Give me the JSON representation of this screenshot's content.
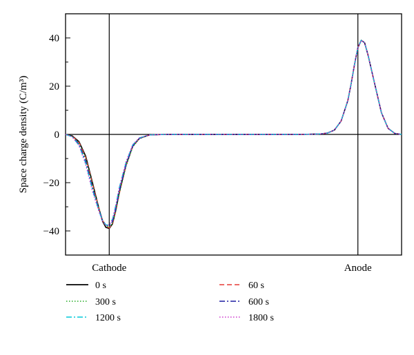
{
  "chart_data": {
    "type": "line",
    "ylabel": "Space charge density (C/m³)",
    "ylim": [
      -50,
      50
    ],
    "yticks": [
      -40,
      -20,
      0,
      20,
      40
    ],
    "xlim": [
      0,
      100
    ],
    "electrodes": [
      {
        "label": "Cathode",
        "x": 13
      },
      {
        "label": "Anode",
        "x": 87
      }
    ],
    "grid": false,
    "legend_position": "bottom",
    "x": [
      0,
      2,
      4,
      6,
      8,
      10,
      11,
      12,
      13,
      14,
      15,
      16,
      18,
      20,
      22,
      25,
      30,
      40,
      50,
      60,
      70,
      76,
      78,
      80,
      82,
      84,
      85,
      86,
      87,
      88,
      89,
      90,
      92,
      94,
      96,
      98,
      100
    ],
    "series": [
      {
        "name": "0 s",
        "color": "#000000",
        "dash": "solid",
        "values": [
          0,
          -0.6,
          -3,
          -9,
          -20,
          -31,
          -36,
          -38.5,
          -39,
          -37,
          -31,
          -24,
          -12.5,
          -4.8,
          -1.6,
          -0.2,
          0,
          0,
          0,
          0,
          0,
          0.2,
          0.6,
          1.8,
          5.5,
          14,
          21,
          29,
          36,
          39,
          38,
          33,
          21,
          9,
          2.5,
          0.4,
          0
        ]
      },
      {
        "name": "60 s",
        "color": "#e53935",
        "dash": "dashed",
        "values": [
          0,
          -0.7,
          -3.3,
          -9.5,
          -20.5,
          -31,
          -35.5,
          -38,
          -38.8,
          -37,
          -31.5,
          -24.5,
          -13,
          -5,
          -1.7,
          -0.2,
          0,
          0,
          0,
          0,
          0,
          0.2,
          0.6,
          1.8,
          5.5,
          14,
          21,
          29,
          36,
          39,
          38,
          33,
          21,
          9,
          2.5,
          0.4,
          0
        ]
      },
      {
        "name": "300 s",
        "color": "#22aa22",
        "dash": "dotted",
        "values": [
          0,
          -0.8,
          -3.6,
          -10,
          -21,
          -31,
          -35.5,
          -37.8,
          -38.5,
          -36.8,
          -31.5,
          -24.6,
          -13.2,
          -5.2,
          -1.8,
          -0.2,
          0,
          0,
          0,
          0,
          0,
          0.2,
          0.6,
          1.8,
          5.5,
          14,
          21,
          29,
          36,
          39,
          38,
          33,
          21,
          9,
          2.5,
          0.4,
          0
        ]
      },
      {
        "name": "600 s",
        "color": "#1a1aa0",
        "dash": "dashdot",
        "values": [
          0,
          -0.9,
          -4,
          -11,
          -22,
          -31.5,
          -35.5,
          -37.5,
          -38,
          -36,
          -30.5,
          -23.5,
          -12.5,
          -4.8,
          -1.6,
          -0.2,
          0,
          0,
          0,
          0,
          0,
          0.2,
          0.6,
          1.8,
          5.5,
          14,
          21,
          29,
          36,
          39,
          38,
          33,
          21,
          9,
          2.5,
          0.4,
          0
        ]
      },
      {
        "name": "1200 s",
        "color": "#00c8d8",
        "dash": "dashdot",
        "values": [
          0,
          -1.0,
          -4.5,
          -12,
          -23,
          -32,
          -35.8,
          -37.5,
          -37.5,
          -35,
          -29,
          -22,
          -11.5,
          -4.3,
          -1.4,
          -0.2,
          0,
          0,
          0,
          0,
          0,
          0.2,
          0.6,
          1.8,
          5.5,
          14,
          21,
          29,
          36,
          39,
          38,
          33,
          21,
          9,
          2.5,
          0.4,
          0
        ]
      },
      {
        "name": "1800 s",
        "color": "#cc33cc",
        "dash": "dotted",
        "values": [
          0,
          -1.0,
          -4.6,
          -12.5,
          -23.5,
          -32.3,
          -36,
          -37.6,
          -37.5,
          -35,
          -29,
          -22,
          -11.2,
          -4.2,
          -1.4,
          -0.2,
          0,
          0,
          0,
          0,
          0,
          0.2,
          0.6,
          1.8,
          5.5,
          14,
          21,
          29,
          36,
          39,
          38,
          33,
          21,
          9,
          2.5,
          0.4,
          0
        ]
      }
    ],
    "legend_order": [
      "0 s",
      "60 s",
      "300 s",
      "600 s",
      "1200 s",
      "1800 s"
    ]
  }
}
